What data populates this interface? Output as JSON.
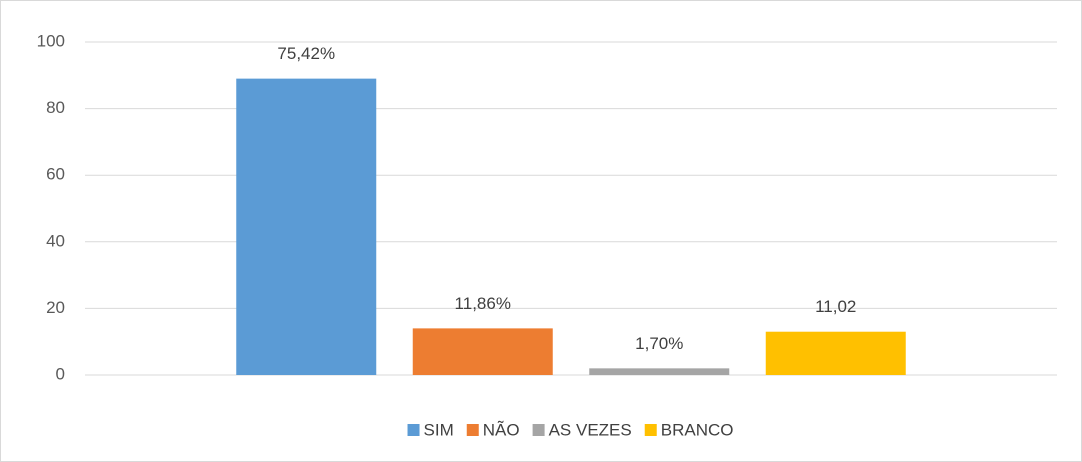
{
  "chart_data": {
    "type": "bar",
    "categories": [
      null
    ],
    "series": [
      {
        "name": "SIM",
        "color": "#5b9bd5",
        "values": [
          89
        ],
        "data_labels": [
          "75,42%"
        ]
      },
      {
        "name": "NÃO",
        "color": "#ed7d31",
        "values": [
          14
        ],
        "data_labels": [
          "11,86%"
        ]
      },
      {
        "name": "AS VEZES",
        "color": "#a5a5a5",
        "values": [
          2
        ],
        "data_labels": [
          "1,70%"
        ]
      },
      {
        "name": "BRANCO",
        "color": "#ffc000",
        "values": [
          13
        ],
        "data_labels": [
          "11,02"
        ]
      }
    ],
    "ylim": [
      0,
      100
    ],
    "yticks": [
      0,
      20,
      40,
      60,
      80,
      100
    ],
    "grid": true,
    "legend": "bottom"
  }
}
